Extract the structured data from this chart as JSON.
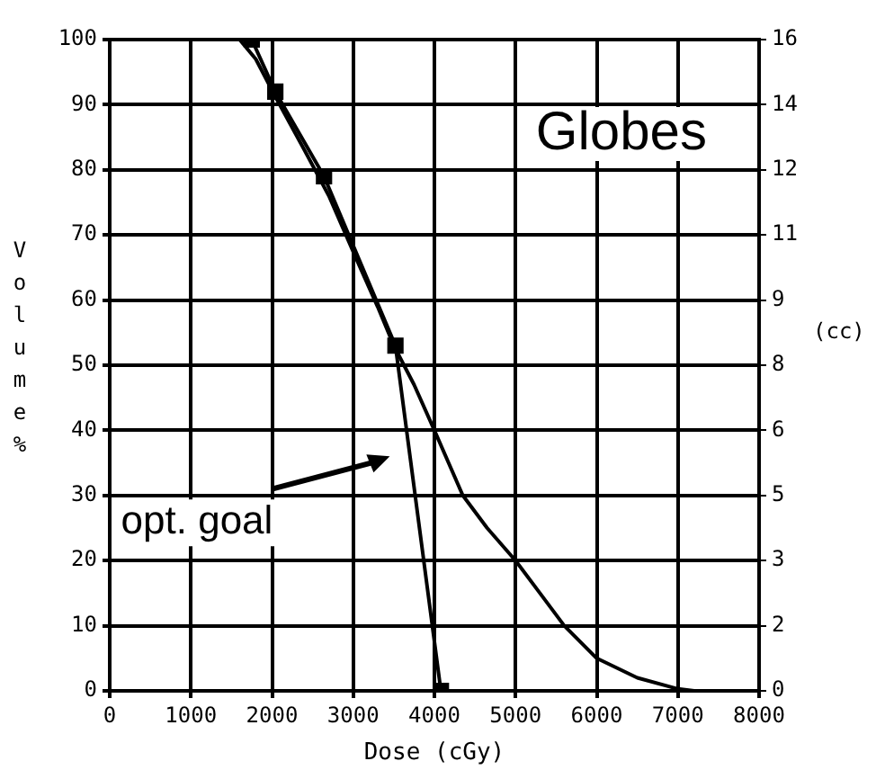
{
  "chart_data": {
    "type": "line",
    "title": "Globes",
    "xlabel": "Dose (cGy)",
    "ylabel": "Volume %",
    "y2label": "(cc)",
    "xlim": [
      0,
      8000
    ],
    "xticks": [
      0,
      1000,
      2000,
      3000,
      4000,
      5000,
      6000,
      7000,
      8000
    ],
    "ylim": [
      0,
      100
    ],
    "yticks": [
      0,
      10,
      20,
      30,
      40,
      50,
      60,
      70,
      80,
      90,
      100
    ],
    "y2lim": [
      0,
      15.6
    ],
    "y2ticks": [
      {
        "value": 0,
        "label": "0"
      },
      {
        "value": 1.56,
        "label": "2"
      },
      {
        "value": 3.12,
        "label": "3"
      },
      {
        "value": 4.68,
        "label": "5"
      },
      {
        "value": 6.24,
        "label": "6"
      },
      {
        "value": 7.8,
        "label": "8"
      },
      {
        "value": 9.36,
        "label": "9"
      },
      {
        "value": 10.92,
        "label": "11"
      },
      {
        "value": 12.48,
        "label": "12"
      },
      {
        "value": 14.04,
        "label": "14"
      },
      {
        "value": 15.6,
        "label": "16"
      }
    ],
    "grid": true,
    "legend": false,
    "line_style": "solid",
    "series": [
      {
        "color": "#000000",
        "marker": "none",
        "x": [
          1600,
          1800,
          2050,
          2400,
          2700,
          3050,
          3300,
          3500,
          3750,
          4000,
          4350,
          4650,
          5000,
          5300,
          5600,
          6000,
          6500,
          7000,
          7200
        ],
        "values": [
          100,
          97,
          91,
          83,
          76,
          66,
          59,
          53,
          47,
          40,
          30,
          25,
          20,
          15,
          10,
          5,
          2,
          0.3,
          0
        ]
      },
      {
        "color": "#000000",
        "marker": "square",
        "x": [
          1750,
          2040,
          2640,
          3520,
          4080
        ],
        "values": [
          100,
          92,
          79,
          53,
          0
        ]
      }
    ],
    "annotations": [
      "opt. goal"
    ]
  }
}
